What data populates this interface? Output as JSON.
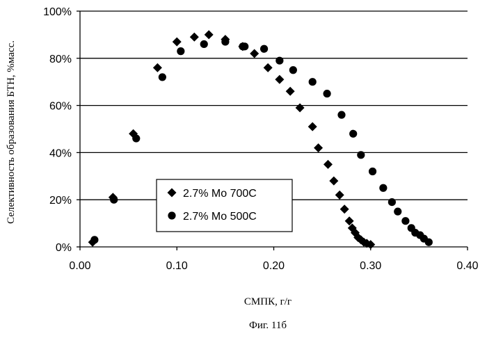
{
  "chart_data": {
    "type": "scatter",
    "xlabel": "СМПК, г/г",
    "ylabel": "Селективность образования БТН, %масс.",
    "caption": "Фиг. 11б",
    "xlim": [
      0.0,
      0.4
    ],
    "ylim": [
      0,
      100
    ],
    "x_ticks": [
      "0.00",
      "0.10",
      "0.20",
      "0.30",
      "0.40"
    ],
    "y_ticks": [
      "0%",
      "20%",
      "40%",
      "60%",
      "80%",
      "100%"
    ],
    "grid": "horizontal",
    "legend_position": "inside-lower-center",
    "series": [
      {
        "name": "2.7% Mo 700C",
        "marker": "diamond",
        "x": [
          0.013,
          0.034,
          0.055,
          0.08,
          0.1,
          0.118,
          0.133,
          0.15,
          0.168,
          0.18,
          0.194,
          0.206,
          0.217,
          0.227,
          0.24,
          0.246,
          0.256,
          0.262,
          0.268,
          0.273,
          0.278,
          0.281,
          0.284,
          0.287,
          0.29,
          0.293,
          0.296,
          0.3
        ],
        "y": [
          2,
          21,
          48,
          76,
          87,
          89,
          90,
          88,
          85,
          82,
          76,
          71,
          66,
          59,
          51,
          42,
          35,
          28,
          22,
          16,
          11,
          8,
          6,
          4,
          3,
          2,
          1.5,
          1
        ]
      },
      {
        "name": "2.7% Mo 500C",
        "marker": "circle",
        "x": [
          0.015,
          0.035,
          0.058,
          0.085,
          0.104,
          0.128,
          0.15,
          0.168,
          0.17,
          0.19,
          0.206,
          0.22,
          0.24,
          0.255,
          0.27,
          0.282,
          0.29,
          0.302,
          0.313,
          0.322,
          0.328,
          0.336,
          0.342,
          0.346,
          0.351,
          0.355,
          0.36
        ],
        "y": [
          3,
          20,
          46,
          72,
          83,
          86,
          87,
          85,
          85,
          84,
          79,
          75,
          70,
          65,
          56,
          48,
          39,
          32,
          25,
          19,
          15,
          11,
          8,
          6,
          5,
          3.5,
          2
        ]
      }
    ]
  }
}
